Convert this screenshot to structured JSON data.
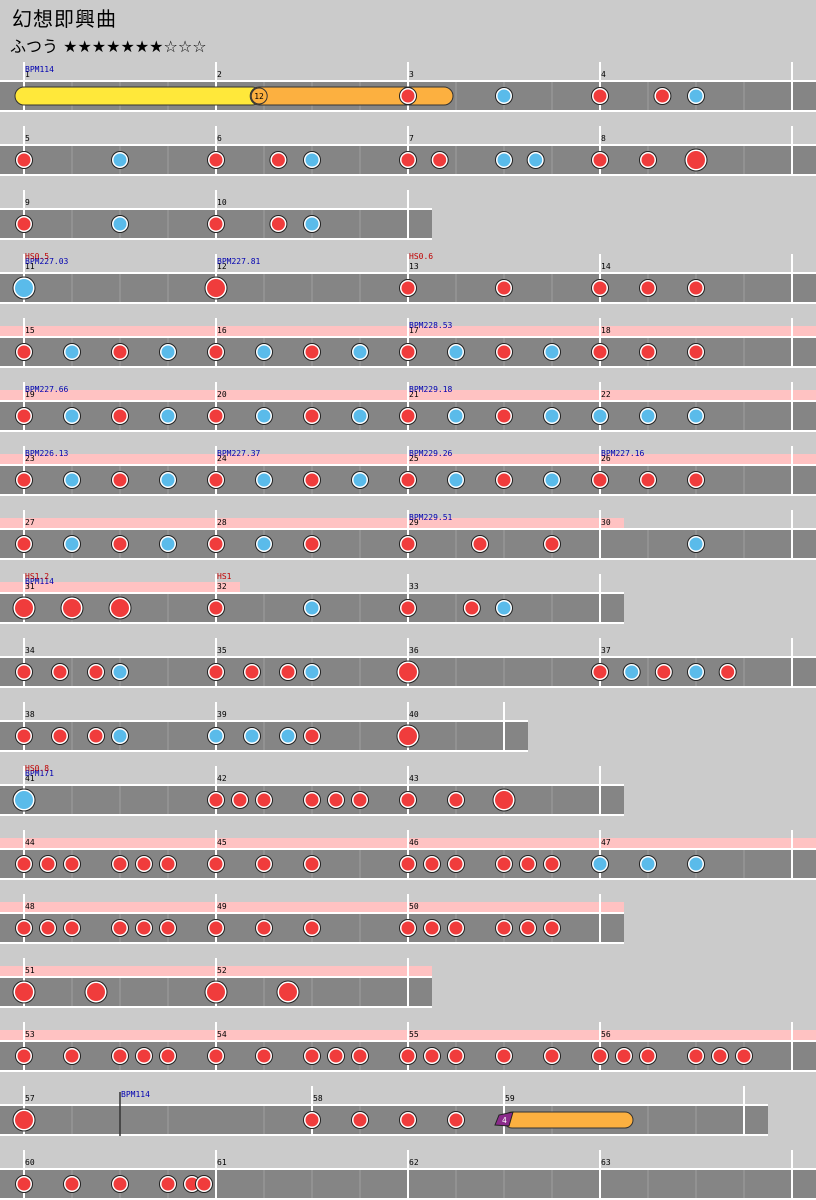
{
  "song": {
    "title": "幻想即興曲",
    "difficulty_label": "ふつう",
    "star_rating": "★★★★★★★☆☆☆",
    "stars_filled": 7,
    "stars_total": 10
  },
  "colors": {
    "background": "#cbcbcb",
    "lane": "#858585",
    "gogo_band": "#ffc2c2",
    "don_note": "#f03c3c",
    "ka_note": "#5abbea",
    "roll_yellow": "#ffe83a",
    "roll_orange": "#fcb040",
    "balloon_purple": "#8a2a8a",
    "bpm_text": "#0000b0",
    "hs_text": "#c00000",
    "measure_number_text": "#000000"
  },
  "rows": [
    {
      "beats": 16,
      "measures": [
        {
          "num": "1",
          "bpm": "BPM114"
        },
        {
          "num": "2"
        },
        {
          "num": "3"
        },
        {
          "num": "4"
        }
      ],
      "rolls": [
        {
          "from": 0,
          "to": 4.75,
          "color": "yellow"
        },
        {
          "from": 4.9,
          "to": 8.75,
          "color": "orange",
          "start_label": "12"
        }
      ],
      "notes": [
        [
          8,
          "d"
        ],
        [
          10,
          "k"
        ],
        [
          12,
          "d"
        ],
        [
          13.3,
          "d"
        ],
        [
          14,
          "k"
        ]
      ]
    },
    {
      "beats": 16,
      "measures": [
        {
          "num": "5"
        },
        {
          "num": "6"
        },
        {
          "num": "7"
        },
        {
          "num": "8"
        }
      ],
      "notes": [
        [
          0,
          "d"
        ],
        [
          2,
          "k"
        ],
        [
          4,
          "d"
        ],
        [
          5.3,
          "d"
        ],
        [
          6,
          "k"
        ],
        [
          8,
          "d"
        ],
        [
          8.66,
          "d"
        ],
        [
          10,
          "k"
        ],
        [
          10.66,
          "k"
        ],
        [
          12,
          "d"
        ],
        [
          13,
          "d"
        ],
        [
          14,
          "D"
        ]
      ]
    },
    {
      "beats": 8,
      "measures": [
        {
          "num": "9"
        },
        {
          "num": "10"
        }
      ],
      "notes": [
        [
          0,
          "d"
        ],
        [
          2,
          "k"
        ],
        [
          4,
          "d"
        ],
        [
          5.3,
          "d"
        ],
        [
          6,
          "k"
        ]
      ]
    },
    {
      "beats": 16,
      "measures": [
        {
          "num": "11",
          "hs": "HS0.5",
          "bpm": "BPM227.03"
        },
        {
          "num": "12",
          "bpm": "BPM227.81"
        },
        {
          "num": "13",
          "hs": "HS0.6"
        },
        {
          "num": "14"
        }
      ],
      "notes": [
        [
          0,
          "K"
        ],
        [
          4,
          "D"
        ],
        [
          8,
          "d"
        ],
        [
          10,
          "d"
        ],
        [
          12,
          "d"
        ],
        [
          13,
          "d"
        ],
        [
          14,
          "d"
        ]
      ]
    },
    {
      "beats": 16,
      "gogo": [
        [
          0,
          16
        ]
      ],
      "measures": [
        {
          "num": "15"
        },
        {
          "num": "16"
        },
        {
          "num": "17",
          "bpm": "BPM228.53"
        },
        {
          "num": "18"
        }
      ],
      "notes": [
        [
          0,
          "d"
        ],
        [
          1,
          "k"
        ],
        [
          2,
          "d"
        ],
        [
          3,
          "k"
        ],
        [
          4,
          "d"
        ],
        [
          5,
          "k"
        ],
        [
          6,
          "d"
        ],
        [
          7,
          "k"
        ],
        [
          8,
          "d"
        ],
        [
          9,
          "k"
        ],
        [
          10,
          "d"
        ],
        [
          11,
          "k"
        ],
        [
          12,
          "d"
        ],
        [
          13,
          "d"
        ],
        [
          14,
          "d"
        ]
      ]
    },
    {
      "beats": 16,
      "gogo": [
        [
          0,
          16
        ]
      ],
      "measures": [
        {
          "num": "19",
          "bpm": "BPM227.66"
        },
        {
          "num": "20"
        },
        {
          "num": "21",
          "bpm": "BPM229.18"
        },
        {
          "num": "22"
        }
      ],
      "notes": [
        [
          0,
          "d"
        ],
        [
          1,
          "k"
        ],
        [
          2,
          "d"
        ],
        [
          3,
          "k"
        ],
        [
          4,
          "d"
        ],
        [
          5,
          "k"
        ],
        [
          6,
          "d"
        ],
        [
          7,
          "k"
        ],
        [
          8,
          "d"
        ],
        [
          9,
          "k"
        ],
        [
          10,
          "d"
        ],
        [
          11,
          "k"
        ],
        [
          12,
          "k"
        ],
        [
          13,
          "k"
        ],
        [
          14,
          "k"
        ]
      ]
    },
    {
      "beats": 16,
      "gogo": [
        [
          0,
          16
        ]
      ],
      "measures": [
        {
          "num": "23",
          "bpm": "BPM226.13"
        },
        {
          "num": "24",
          "bpm": "BPM227.37"
        },
        {
          "num": "25",
          "bpm": "BPM229.26"
        },
        {
          "num": "26",
          "bpm": "BPM227.16"
        }
      ],
      "notes": [
        [
          0,
          "d"
        ],
        [
          1,
          "k"
        ],
        [
          2,
          "d"
        ],
        [
          3,
          "k"
        ],
        [
          4,
          "d"
        ],
        [
          5,
          "k"
        ],
        [
          6,
          "d"
        ],
        [
          7,
          "k"
        ],
        [
          8,
          "d"
        ],
        [
          9,
          "k"
        ],
        [
          10,
          "d"
        ],
        [
          11,
          "k"
        ],
        [
          12,
          "d"
        ],
        [
          13,
          "d"
        ],
        [
          14,
          "d"
        ]
      ]
    },
    {
      "beats": 16,
      "gogo": [
        [
          0,
          12
        ]
      ],
      "measures": [
        {
          "num": "27"
        },
        {
          "num": "28"
        },
        {
          "num": "29",
          "bpm": "BPM229.51"
        },
        {
          "num": "30"
        }
      ],
      "notes": [
        [
          0,
          "d"
        ],
        [
          1,
          "k"
        ],
        [
          2,
          "d"
        ],
        [
          3,
          "k"
        ],
        [
          4,
          "d"
        ],
        [
          5,
          "k"
        ],
        [
          6,
          "d"
        ],
        [
          8,
          "d"
        ],
        [
          9.5,
          "d"
        ],
        [
          11,
          "d"
        ],
        [
          14,
          "k"
        ]
      ]
    },
    {
      "beats": 12,
      "gogo": [
        [
          0,
          4
        ]
      ],
      "measures": [
        {
          "num": "31",
          "hs": "HS1.2",
          "bpm": "BPM114"
        },
        {
          "num": "32",
          "hs": "HS1"
        },
        {
          "num": "33"
        }
      ],
      "notes": [
        [
          0,
          "D"
        ],
        [
          1,
          "D"
        ],
        [
          2,
          "D"
        ],
        [
          4,
          "d"
        ],
        [
          6,
          "k"
        ],
        [
          8,
          "d"
        ],
        [
          9.33,
          "d"
        ],
        [
          10,
          "k"
        ]
      ]
    },
    {
      "beats": 16,
      "measures": [
        {
          "num": "34"
        },
        {
          "num": "35"
        },
        {
          "num": "36"
        },
        {
          "num": "37"
        }
      ],
      "notes": [
        [
          0,
          "d"
        ],
        [
          0.75,
          "d"
        ],
        [
          1.5,
          "d"
        ],
        [
          2,
          "k"
        ],
        [
          4,
          "d"
        ],
        [
          4.75,
          "d"
        ],
        [
          5.5,
          "d"
        ],
        [
          6,
          "k"
        ],
        [
          8,
          "D"
        ],
        [
          12,
          "d"
        ],
        [
          12.66,
          "k"
        ],
        [
          13.33,
          "d"
        ],
        [
          14,
          "k"
        ],
        [
          14.66,
          "d"
        ]
      ]
    },
    {
      "beats": 10,
      "measures": [
        {
          "num": "38"
        },
        {
          "num": "39"
        },
        {
          "num": "40"
        }
      ],
      "notes": [
        [
          0,
          "d"
        ],
        [
          0.75,
          "d"
        ],
        [
          1.5,
          "d"
        ],
        [
          2,
          "k"
        ],
        [
          4,
          "k"
        ],
        [
          4.75,
          "k"
        ],
        [
          5.5,
          "k"
        ],
        [
          6,
          "d"
        ],
        [
          8,
          "D"
        ]
      ]
    },
    {
      "beats": 12,
      "measures": [
        {
          "num": "41",
          "hs": "HS0.8",
          "bpm": "BPM171"
        },
        {
          "num": "42"
        },
        {
          "num": "43"
        }
      ],
      "notes": [
        [
          0,
          "K"
        ],
        [
          4,
          "d"
        ],
        [
          4.5,
          "d"
        ],
        [
          5,
          "d"
        ],
        [
          6,
          "d"
        ],
        [
          6.5,
          "d"
        ],
        [
          7,
          "d"
        ],
        [
          8,
          "d"
        ],
        [
          9,
          "d"
        ],
        [
          10,
          "D"
        ]
      ]
    },
    {
      "beats": 16,
      "gogo": [
        [
          0,
          16
        ]
      ],
      "measures": [
        {
          "num": "44"
        },
        {
          "num": "45"
        },
        {
          "num": "46"
        },
        {
          "num": "47"
        }
      ],
      "notes": [
        [
          0,
          "d"
        ],
        [
          0.5,
          "d"
        ],
        [
          1,
          "d"
        ],
        [
          2,
          "d"
        ],
        [
          2.5,
          "d"
        ],
        [
          3,
          "d"
        ],
        [
          4,
          "d"
        ],
        [
          5,
          "d"
        ],
        [
          6,
          "d"
        ],
        [
          8,
          "d"
        ],
        [
          8.5,
          "d"
        ],
        [
          9,
          "d"
        ],
        [
          10,
          "d"
        ],
        [
          10.5,
          "d"
        ],
        [
          11,
          "d"
        ],
        [
          12,
          "k"
        ],
        [
          13,
          "k"
        ],
        [
          14,
          "k"
        ]
      ]
    },
    {
      "beats": 12,
      "gogo": [
        [
          0,
          12
        ]
      ],
      "measures": [
        {
          "num": "48"
        },
        {
          "num": "49"
        },
        {
          "num": "50"
        }
      ],
      "notes": [
        [
          0,
          "d"
        ],
        [
          0.5,
          "d"
        ],
        [
          1,
          "d"
        ],
        [
          2,
          "d"
        ],
        [
          2.5,
          "d"
        ],
        [
          3,
          "d"
        ],
        [
          4,
          "d"
        ],
        [
          5,
          "d"
        ],
        [
          6,
          "d"
        ],
        [
          8,
          "d"
        ],
        [
          8.5,
          "d"
        ],
        [
          9,
          "d"
        ],
        [
          10,
          "d"
        ],
        [
          10.5,
          "d"
        ],
        [
          11,
          "d"
        ]
      ]
    },
    {
      "beats": 8,
      "gogo": [
        [
          0,
          8
        ]
      ],
      "measures": [
        {
          "num": "51"
        },
        {
          "num": "52"
        }
      ],
      "notes": [
        [
          0,
          "D"
        ],
        [
          1.5,
          "D"
        ],
        [
          4,
          "D"
        ],
        [
          5.5,
          "D"
        ]
      ]
    },
    {
      "beats": 16,
      "gogo": [
        [
          0,
          16
        ]
      ],
      "measures": [
        {
          "num": "53"
        },
        {
          "num": "54"
        },
        {
          "num": "55"
        },
        {
          "num": "56"
        }
      ],
      "notes": [
        [
          0,
          "d"
        ],
        [
          1,
          "d"
        ],
        [
          2,
          "d"
        ],
        [
          2.5,
          "d"
        ],
        [
          3,
          "d"
        ],
        [
          4,
          "d"
        ],
        [
          5,
          "d"
        ],
        [
          6,
          "d"
        ],
        [
          6.5,
          "d"
        ],
        [
          7,
          "d"
        ],
        [
          8,
          "d"
        ],
        [
          8.5,
          "d"
        ],
        [
          9,
          "d"
        ],
        [
          10,
          "d"
        ],
        [
          11,
          "d"
        ],
        [
          12,
          "d"
        ],
        [
          12.5,
          "d"
        ],
        [
          13,
          "d"
        ],
        [
          14,
          "d"
        ],
        [
          14.5,
          "d"
        ],
        [
          15,
          "d"
        ]
      ]
    },
    {
      "beats": 15,
      "measures": [
        {
          "num": "57"
        },
        {
          "num": "58",
          "at": 6
        },
        {
          "num": "59",
          "at": 10
        }
      ],
      "markers": [
        {
          "at": 2,
          "bpm": "BPM114"
        }
      ],
      "balloons": [
        {
          "from": 10,
          "to": 12.5,
          "label": "4"
        }
      ],
      "notes": [
        [
          0,
          "D"
        ],
        [
          6,
          "d"
        ],
        [
          7,
          "d"
        ],
        [
          8,
          "d"
        ],
        [
          9,
          "d"
        ]
      ]
    },
    {
      "beats": 16,
      "measures": [
        {
          "num": "60"
        },
        {
          "num": "61"
        },
        {
          "num": "62"
        },
        {
          "num": "63"
        }
      ],
      "notes": [
        [
          0,
          "d"
        ],
        [
          1,
          "d"
        ],
        [
          2,
          "d"
        ],
        [
          3,
          "d"
        ],
        [
          3.5,
          "d"
        ],
        [
          3.75,
          "d"
        ]
      ]
    }
  ]
}
